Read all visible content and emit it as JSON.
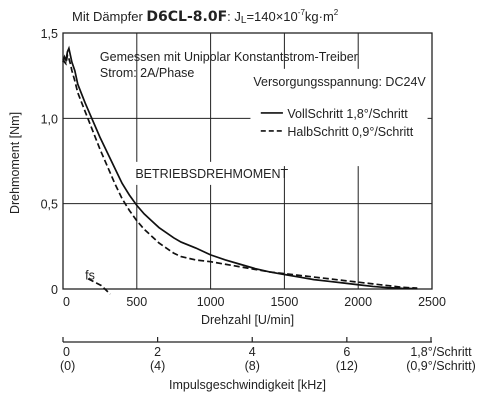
{
  "chart_data": {
    "type": "line",
    "title": {
      "prefix": "Mit Dämpfer ",
      "model": "D6CL-8.0F",
      "inertia": ": J",
      "inertia_sub": "L",
      "inertia_val": "=140×10",
      "inertia_exp": "-7",
      "inertia_unit": "kg·m",
      "inertia_unit_exp": "2"
    },
    "annotations": {
      "line1": "Gemessen mit Unipolar Konstantstrom-Treiber",
      "line2": "Strom: 2A/Phase",
      "supply": "Versorgungsspannung: DC24V",
      "operating": "BETRIEBSDREHMOMENT",
      "fs": "fs"
    },
    "ylabel": "Drehmoment [Nm]",
    "xlabel": "Drehzahl [U/min]",
    "x2label": "Impulsgeschwindigkeit [kHz]",
    "xlim": [
      0,
      2500
    ],
    "ylim": [
      0,
      1.5
    ],
    "x_ticks": [
      "0",
      "500",
      "1000",
      "1500",
      "2000",
      "2500"
    ],
    "y_ticks": [
      "0",
      "0,5",
      "1,0",
      "1,5"
    ],
    "x2_ticks": [
      {
        "top": "0",
        "bottom": "(0)"
      },
      {
        "top": "2",
        "bottom": "(4)"
      },
      {
        "top": "4",
        "bottom": "(8)"
      },
      {
        "top": "6",
        "bottom": "(12)"
      },
      {
        "top": "1,8°/Schritt",
        "bottom": "(0,9°/Schritt)"
      }
    ],
    "grid": true,
    "legend_position": "top-right",
    "series": [
      {
        "name": "VollSchritt 1,8°/Schritt",
        "style": "solid",
        "points": [
          [
            0,
            1.33
          ],
          [
            10,
            1.36
          ],
          [
            20,
            1.34
          ],
          [
            30,
            1.39
          ],
          [
            40,
            1.41
          ],
          [
            50,
            1.37
          ],
          [
            60,
            1.33
          ],
          [
            80,
            1.28
          ],
          [
            100,
            1.2
          ],
          [
            150,
            1.09
          ],
          [
            200,
            0.99
          ],
          [
            250,
            0.89
          ],
          [
            300,
            0.8
          ],
          [
            350,
            0.71
          ],
          [
            400,
            0.62
          ],
          [
            450,
            0.55
          ],
          [
            500,
            0.49
          ],
          [
            550,
            0.44
          ],
          [
            600,
            0.4
          ],
          [
            650,
            0.36
          ],
          [
            700,
            0.33
          ],
          [
            750,
            0.3
          ],
          [
            800,
            0.275
          ],
          [
            900,
            0.24
          ],
          [
            1000,
            0.2
          ],
          [
            1100,
            0.17
          ],
          [
            1200,
            0.145
          ],
          [
            1300,
            0.12
          ],
          [
            1400,
            0.1
          ],
          [
            1500,
            0.085
          ],
          [
            1600,
            0.07
          ],
          [
            1700,
            0.055
          ],
          [
            1800,
            0.045
          ],
          [
            1900,
            0.035
          ],
          [
            2000,
            0.025
          ],
          [
            2100,
            0.015
          ],
          [
            2200,
            0.008
          ],
          [
            2300,
            0.004
          ],
          [
            2400,
            0.002
          ]
        ]
      },
      {
        "name": "HalbSchritt 0,9°/Schritt",
        "style": "dashed",
        "points": [
          [
            0,
            1.35
          ],
          [
            10,
            1.33
          ],
          [
            20,
            1.32
          ],
          [
            30,
            1.37
          ],
          [
            40,
            1.35
          ],
          [
            50,
            1.32
          ],
          [
            60,
            1.28
          ],
          [
            80,
            1.22
          ],
          [
            100,
            1.15
          ],
          [
            150,
            1.04
          ],
          [
            200,
            0.93
          ],
          [
            250,
            0.82
          ],
          [
            300,
            0.72
          ],
          [
            350,
            0.62
          ],
          [
            400,
            0.53
          ],
          [
            450,
            0.46
          ],
          [
            500,
            0.4
          ],
          [
            550,
            0.35
          ],
          [
            600,
            0.31
          ],
          [
            650,
            0.27
          ],
          [
            700,
            0.24
          ],
          [
            750,
            0.21
          ],
          [
            800,
            0.19
          ],
          [
            900,
            0.17
          ],
          [
            1000,
            0.16
          ],
          [
            1100,
            0.145
          ],
          [
            1200,
            0.13
          ],
          [
            1300,
            0.115
          ],
          [
            1400,
            0.1
          ],
          [
            1500,
            0.09
          ],
          [
            1600,
            0.08
          ],
          [
            1700,
            0.07
          ],
          [
            1800,
            0.06
          ],
          [
            1900,
            0.05
          ],
          [
            2000,
            0.04
          ],
          [
            2100,
            0.03
          ],
          [
            2200,
            0.02
          ],
          [
            2300,
            0.01
          ],
          [
            2400,
            0.005
          ]
        ]
      },
      {
        "name": "fs",
        "style": "dashed",
        "points": [
          [
            170,
            0.06
          ],
          [
            260,
            0.02
          ],
          [
            320,
            -0.03
          ]
        ]
      }
    ]
  }
}
